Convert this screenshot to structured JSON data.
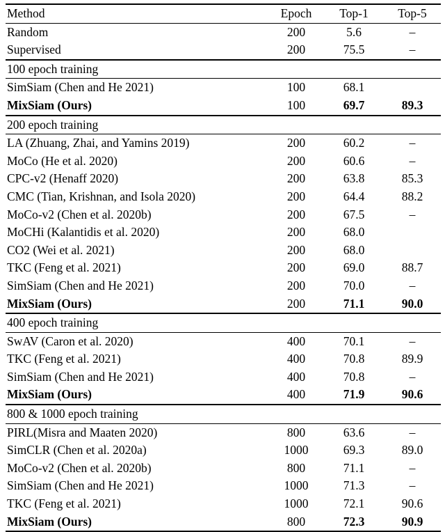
{
  "table": {
    "headers": [
      "Method",
      "Epoch",
      "Top-1",
      "Top-5"
    ],
    "rows": [
      {
        "type": "data",
        "method": "Random",
        "epoch": "200",
        "top1": "5.6",
        "top5": "–",
        "bold": false
      },
      {
        "type": "data",
        "method": "Supervised",
        "epoch": "200",
        "top1": "75.5",
        "top5": "–",
        "bold": false
      },
      {
        "type": "section",
        "label": "100 epoch training"
      },
      {
        "type": "data",
        "method": "SimSiam (Chen and He 2021)",
        "epoch": "100",
        "top1": "68.1",
        "top5": "",
        "bold": false
      },
      {
        "type": "data",
        "method": "MixSiam (Ours)",
        "epoch": "100",
        "top1": "69.7",
        "top5": "89.3",
        "bold": true
      },
      {
        "type": "section",
        "label": "200 epoch training"
      },
      {
        "type": "data",
        "method": "LA (Zhuang, Zhai, and Yamins 2019)",
        "epoch": "200",
        "top1": "60.2",
        "top5": "–",
        "bold": false
      },
      {
        "type": "data",
        "method": "MoCo (He et al. 2020)",
        "epoch": "200",
        "top1": "60.6",
        "top5": "–",
        "bold": false
      },
      {
        "type": "data",
        "method": "CPC-v2 (Henaff 2020)",
        "epoch": "200",
        "top1": "63.8",
        "top5": "85.3",
        "bold": false
      },
      {
        "type": "data",
        "method": "CMC (Tian, Krishnan, and Isola 2020)",
        "epoch": "200",
        "top1": "64.4",
        "top5": "88.2",
        "bold": false
      },
      {
        "type": "data",
        "method": "MoCo-v2 (Chen et al. 2020b)",
        "epoch": "200",
        "top1": "67.5",
        "top5": "–",
        "bold": false
      },
      {
        "type": "data",
        "method": "MoCHi (Kalantidis et al. 2020)",
        "epoch": "200",
        "top1": "68.0",
        "top5": "",
        "bold": false
      },
      {
        "type": "data",
        "method": "CO2 (Wei et al. 2021)",
        "epoch": "200",
        "top1": "68.0",
        "top5": "",
        "bold": false
      },
      {
        "type": "data",
        "method": "TKC (Feng et al. 2021)",
        "epoch": "200",
        "top1": "69.0",
        "top5": "88.7",
        "bold": false
      },
      {
        "type": "data",
        "method": "SimSiam (Chen and He 2021)",
        "epoch": "200",
        "top1": "70.0",
        "top5": "–",
        "bold": false
      },
      {
        "type": "data",
        "method": "MixSiam (Ours)",
        "epoch": "200",
        "top1": "71.1",
        "top5": "90.0",
        "bold": true
      },
      {
        "type": "section",
        "label": "400 epoch training"
      },
      {
        "type": "data",
        "method": "SwAV (Caron et al. 2020)",
        "epoch": "400",
        "top1": "70.1",
        "top5": "–",
        "bold": false
      },
      {
        "type": "data",
        "method": "TKC (Feng et al. 2021)",
        "epoch": "400",
        "top1": "70.8",
        "top5": "89.9",
        "bold": false
      },
      {
        "type": "data",
        "method": "SimSiam (Chen and He 2021)",
        "epoch": "400",
        "top1": "70.8",
        "top5": "–",
        "bold": false
      },
      {
        "type": "data",
        "method": "MixSiam (Ours)",
        "epoch": "400",
        "top1": "71.9",
        "top5": "90.6",
        "bold": true
      },
      {
        "type": "section",
        "label": "800 & 1000 epoch training"
      },
      {
        "type": "data",
        "method": "PIRL(Misra and Maaten 2020)",
        "epoch": "800",
        "top1": "63.6",
        "top5": "–",
        "bold": false
      },
      {
        "type": "data",
        "method": "SimCLR (Chen et al. 2020a)",
        "epoch": "1000",
        "top1": "69.3",
        "top5": "89.0",
        "bold": false
      },
      {
        "type": "data",
        "method": "MoCo-v2 (Chen et al. 2020b)",
        "epoch": "800",
        "top1": "71.1",
        "top5": "–",
        "bold": false
      },
      {
        "type": "data",
        "method": "SimSiam (Chen and He 2021)",
        "epoch": "1000",
        "top1": "71.3",
        "top5": "–",
        "bold": false
      },
      {
        "type": "data",
        "method": "TKC (Feng et al. 2021)",
        "epoch": "1000",
        "top1": "72.1",
        "top5": "90.6",
        "bold": false
      },
      {
        "type": "data",
        "method": "MixSiam (Ours)",
        "epoch": "800",
        "top1": "72.3",
        "top5": "90.9",
        "bold": true
      }
    ]
  }
}
